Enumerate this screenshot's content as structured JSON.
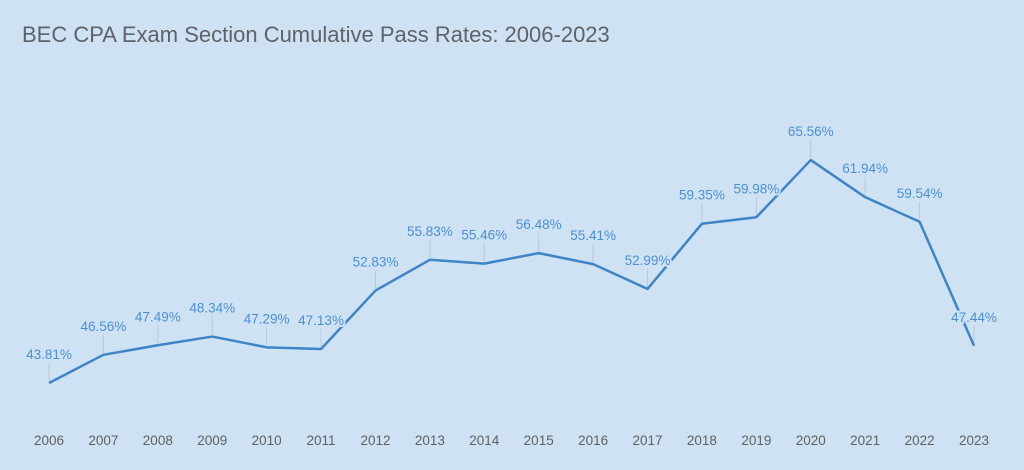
{
  "chart_data": {
    "type": "line",
    "title": "BEC CPA Exam Section Cumulative Pass Rates: 2006-2023",
    "xlabel": "",
    "ylabel": "",
    "categories": [
      "2006",
      "2007",
      "2008",
      "2009",
      "2010",
      "2011",
      "2012",
      "2013",
      "2014",
      "2015",
      "2016",
      "2017",
      "2018",
      "2019",
      "2020",
      "2021",
      "2022",
      "2023"
    ],
    "values": [
      43.81,
      46.56,
      47.49,
      48.34,
      47.29,
      47.13,
      52.83,
      55.83,
      55.46,
      56.48,
      55.41,
      52.99,
      59.35,
      59.98,
      65.56,
      61.94,
      59.54,
      47.44
    ],
    "value_labels": [
      "43.81%",
      "46.56%",
      "47.49%",
      "48.34%",
      "47.29%",
      "47.13%",
      "52.83%",
      "55.83%",
      "55.46%",
      "56.48%",
      "55.41%",
      "52.99%",
      "59.35%",
      "59.98%",
      "65.56%",
      "61.94%",
      "59.54%",
      "47.44%"
    ],
    "grid": false,
    "legend": "none",
    "colors": {
      "background": "#cfe2f3",
      "line": "#3d85c6",
      "labels": "#4a8fd6"
    }
  }
}
